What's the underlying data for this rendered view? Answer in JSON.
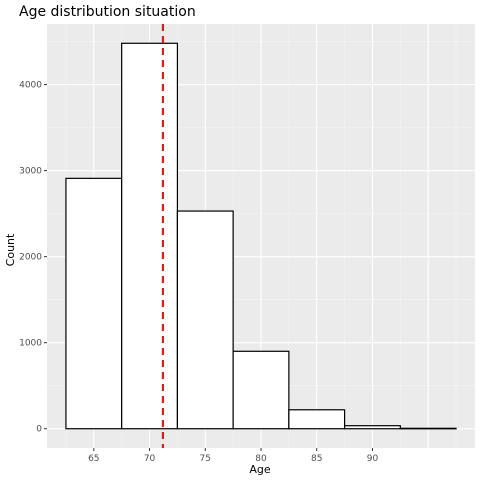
{
  "chart_data": {
    "type": "bar",
    "title": "Age distribution situation",
    "xlabel": "Age",
    "ylabel": "Count",
    "bin_width": 5,
    "bins": [
      {
        "start": 62.5,
        "end": 67.5,
        "count": 2910
      },
      {
        "start": 67.5,
        "end": 72.5,
        "count": 4480
      },
      {
        "start": 72.5,
        "end": 77.5,
        "count": 2530
      },
      {
        "start": 77.5,
        "end": 82.5,
        "count": 900
      },
      {
        "start": 82.5,
        "end": 87.5,
        "count": 220
      },
      {
        "start": 87.5,
        "end": 92.5,
        "count": 35
      },
      {
        "start": 92.5,
        "end": 97.5,
        "count": 5
      }
    ],
    "x_ticks": [
      65,
      70,
      75,
      80,
      85,
      90
    ],
    "y_ticks": [
      0,
      1000,
      2000,
      3000,
      4000
    ],
    "xlim": [
      60.8,
      99.2
    ],
    "ylim": [
      -224,
      4704
    ],
    "reference_line": {
      "x": 71.2,
      "color": "#e31a1c",
      "style": "dashed"
    },
    "grid": true,
    "colors": {
      "bar_fill": "#ffffff",
      "bar_outline": "#000000",
      "panel": "#ebebeb"
    }
  }
}
